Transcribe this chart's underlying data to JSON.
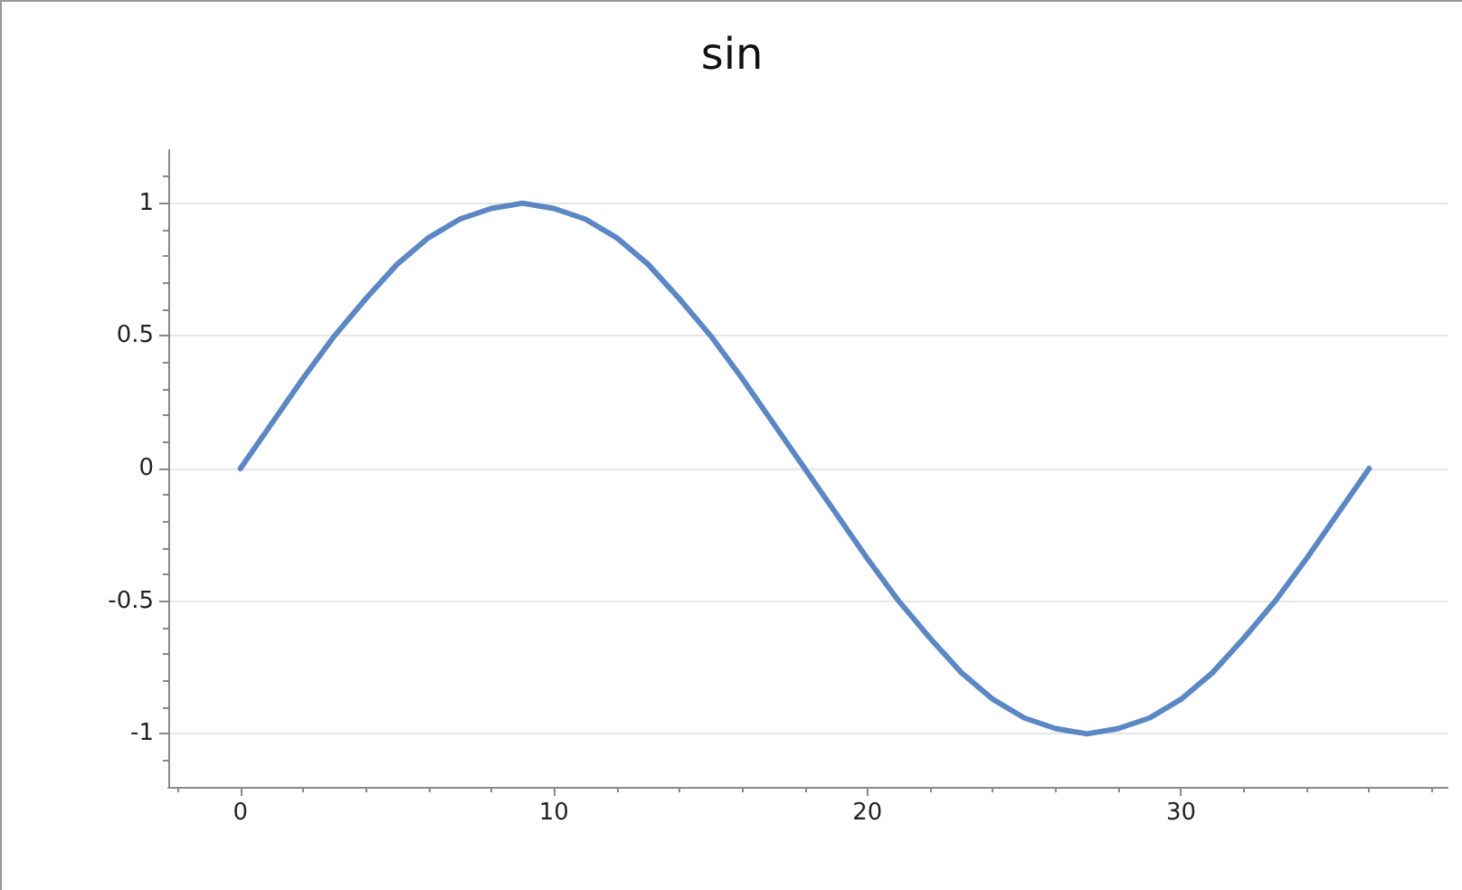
{
  "chart_data": {
    "type": "line",
    "title": "sin",
    "x": [
      0,
      1,
      2,
      3,
      4,
      5,
      6,
      7,
      8,
      9,
      10,
      11,
      12,
      13,
      14,
      15,
      16,
      17,
      18,
      19,
      20,
      21,
      22,
      23,
      24,
      25,
      26,
      27,
      28,
      29,
      30,
      31,
      32,
      33,
      34,
      35,
      36
    ],
    "series": [
      {
        "color": "#5b87c5",
        "values": [
          0,
          0.17,
          0.34,
          0.5,
          0.64,
          0.77,
          0.87,
          0.94,
          0.98,
          1,
          0.98,
          0.94,
          0.87,
          0.77,
          0.64,
          0.5,
          0.34,
          0.17,
          0,
          -0.17,
          -0.34,
          -0.5,
          -0.64,
          -0.77,
          -0.87,
          -0.94,
          -0.98,
          -1,
          -0.98,
          -0.94,
          -0.87,
          -0.77,
          -0.64,
          -0.5,
          -0.34,
          -0.17,
          0
        ]
      }
    ],
    "xlim": [
      -2.3,
      38.5
    ],
    "xticks": [
      0,
      10,
      20,
      30
    ],
    "ylim": [
      -1.2,
      1.2
    ],
    "yticks": [
      -1,
      -0.5,
      0,
      0.5,
      1
    ],
    "grid": "y",
    "marker": "none",
    "line_style": "solid"
  }
}
